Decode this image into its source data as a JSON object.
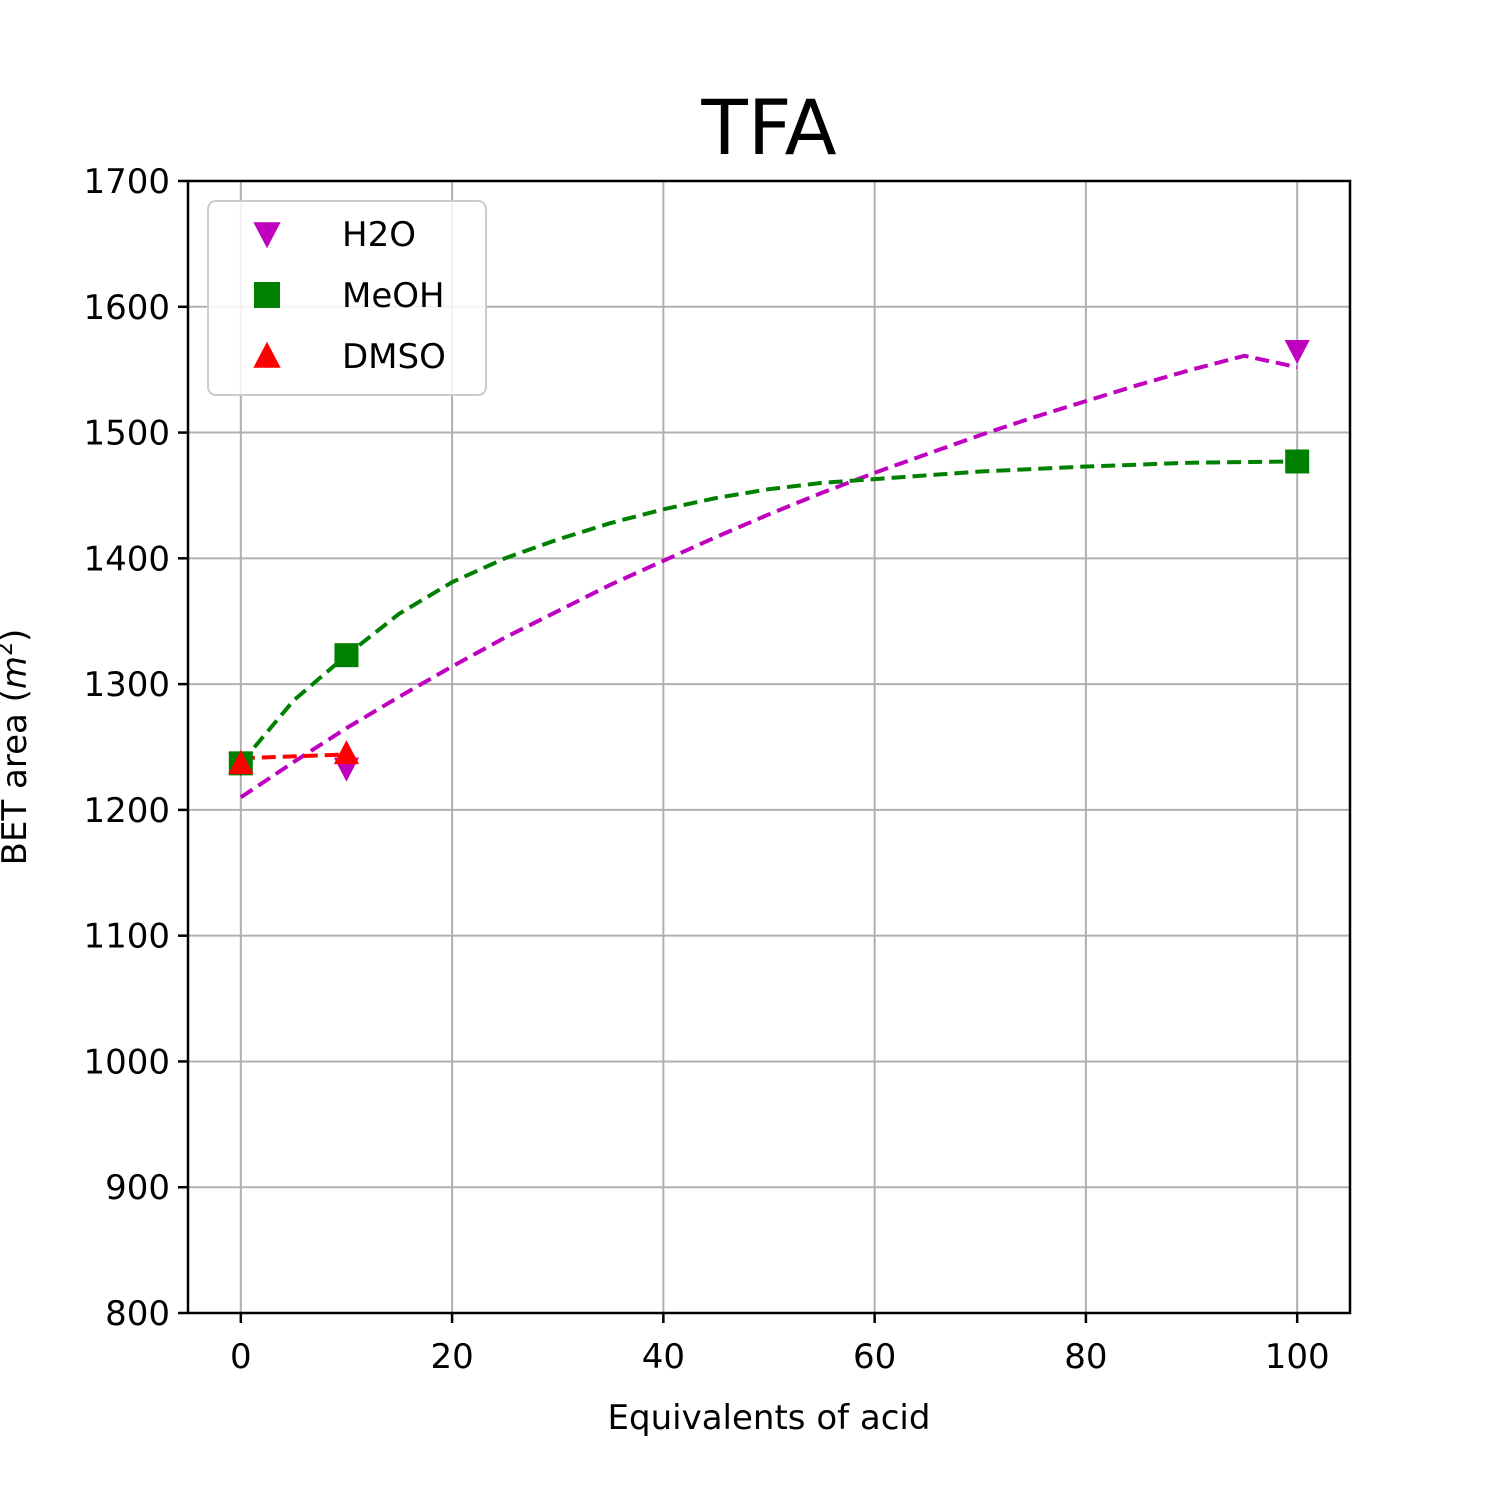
{
  "chart_data": {
    "type": "scatter",
    "title": "TFA",
    "xlabel": "Equivalents of acid",
    "ylabel": "BET area (m²)",
    "ylabel_text": "BET area (",
    "ylabel_var": "m",
    "ylabel_sup": "2",
    "ylabel_close": ")",
    "xlim": [
      -5,
      105
    ],
    "ylim": [
      800,
      1700
    ],
    "xticks": [
      0,
      20,
      40,
      60,
      80,
      100
    ],
    "yticks": [
      800,
      900,
      1000,
      1100,
      1200,
      1300,
      1400,
      1500,
      1600,
      1700
    ],
    "grid": true,
    "legend_position": "top-left",
    "series": [
      {
        "name": "H2O",
        "marker": "triangle-down",
        "color": "#bf00bf",
        "x": [
          0,
          10,
          100
        ],
        "y": [
          1237,
          1233,
          1565
        ],
        "fit": {
          "style": "dashed",
          "x": [
            0,
            5,
            10,
            15,
            20,
            25,
            30,
            35,
            40,
            45,
            50,
            55,
            60,
            65,
            70,
            75,
            80,
            85,
            90,
            95,
            100
          ],
          "y": [
            1210,
            1238,
            1265,
            1290,
            1314,
            1337,
            1358,
            1379,
            1398,
            1417,
            1435,
            1452,
            1468,
            1483,
            1498,
            1512,
            1525,
            1538,
            1550,
            1561,
            1552
          ]
        }
      },
      {
        "name": "MeOH",
        "marker": "square",
        "color": "#008000",
        "x": [
          0,
          10,
          100
        ],
        "y": [
          1237,
          1323,
          1477
        ],
        "fit": {
          "style": "dashed",
          "x": [
            0,
            5,
            10,
            15,
            20,
            25,
            30,
            35,
            40,
            45,
            50,
            55,
            60,
            70,
            80,
            90,
            100
          ],
          "y": [
            1237,
            1287,
            1323,
            1356,
            1381,
            1400,
            1415,
            1428,
            1439,
            1448,
            1455,
            1460,
            1463,
            1469,
            1473,
            1476,
            1477
          ]
        }
      },
      {
        "name": "DMSO",
        "marker": "triangle-up",
        "color": "#ff0000",
        "x": [
          0,
          10
        ],
        "y": [
          1237,
          1245
        ],
        "fit": {
          "style": "dashed",
          "x": [
            0,
            10
          ],
          "y": [
            1241,
            1244
          ]
        }
      }
    ]
  }
}
